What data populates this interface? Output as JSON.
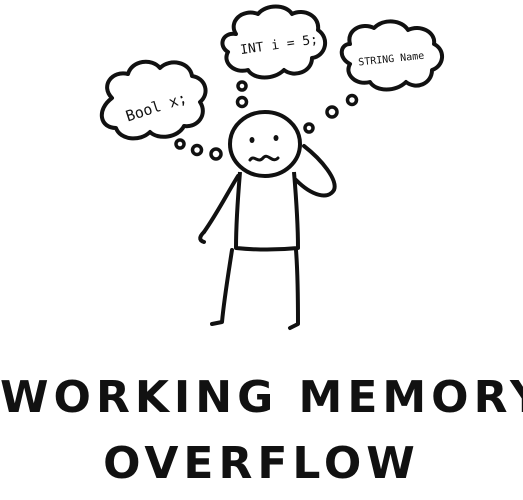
{
  "thoughts": {
    "bubble_left": "Bool x;",
    "bubble_center": "INT i = 5;",
    "bubble_right": "STRING Name"
  },
  "caption": {
    "line1": "WORKING MEMORY",
    "line2": "OVERFLOW"
  },
  "colors": {
    "ink": "#111111",
    "background": "#ffffff"
  }
}
